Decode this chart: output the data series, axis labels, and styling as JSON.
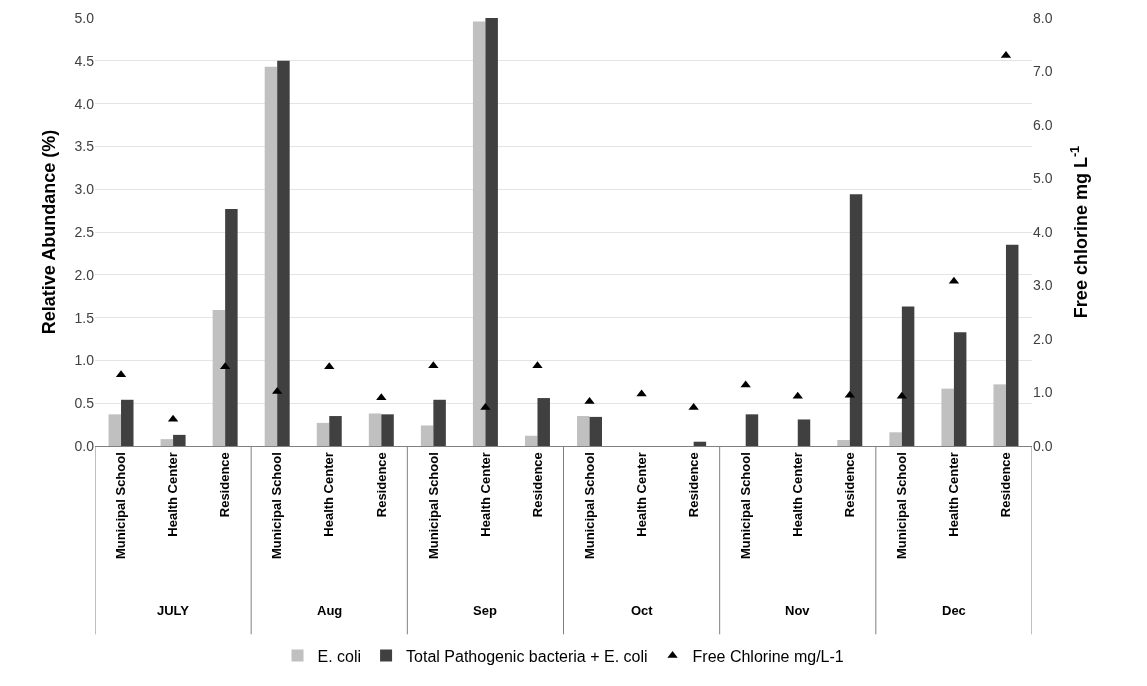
{
  "chart_data": {
    "type": "bar",
    "categories": [
      "Municipal School",
      "Health Center",
      "Residence",
      "Municipal School",
      "Health Center",
      "Residence",
      "Municipal School",
      "Health Center",
      "Residence",
      "Municipal School",
      "Health Center",
      "Residence",
      "Municipal School",
      "Health Center",
      "Residence",
      "Municipal School",
      "Health Center",
      "Residence"
    ],
    "annotations": [
      "JULY",
      "Aug",
      "Sep",
      "Oct",
      "Nov",
      "Dec"
    ],
    "series": [
      {
        "name": "E. coli",
        "color": "#c0c0c0",
        "values": [
          0.37,
          0.08,
          1.59,
          4.43,
          0.27,
          0.38,
          0.24,
          4.96,
          0.12,
          0.35,
          0,
          0,
          0,
          0,
          0.07,
          0.16,
          0.67,
          0.72
        ]
      },
      {
        "name": "Total Pathogenic bacteria + E. coli",
        "color": "#404040",
        "values": [
          0.54,
          0.13,
          2.77,
          4.5,
          0.35,
          0.37,
          0.54,
          5.0,
          0.56,
          0.34,
          0,
          0.05,
          0.37,
          0.31,
          2.94,
          1.63,
          1.33,
          2.35
        ]
      },
      {
        "name": "Free Chlorine mg/L-1",
        "type": "scatter",
        "axis": "y2",
        "color": "#000000",
        "values": [
          1.33,
          0.5,
          1.48,
          1.02,
          1.48,
          0.9,
          1.5,
          0.72,
          1.5,
          0.83,
          0.97,
          0.72,
          1.14,
          0.93,
          0.95,
          0.93,
          3.08,
          7.3
        ]
      }
    ],
    "marker": "triangle",
    "ylabel": "Relative Abundance (%)",
    "y2label": "Free chlorine mg L$^{-1}$",
    "ylim": [
      0,
      5
    ],
    "yticks": [
      {
        "value": 0,
        "label": "0.0"
      },
      {
        "value": 0.5,
        "label": "0.5"
      },
      {
        "value": 1,
        "label": "1.0"
      },
      {
        "value": 1.5,
        "label": "1.5"
      },
      {
        "value": 2,
        "label": "2.0"
      },
      {
        "value": 2.5,
        "label": "2.5"
      },
      {
        "value": 3,
        "label": "3.0"
      },
      {
        "value": 3.5,
        "label": "3.5"
      },
      {
        "value": 4,
        "label": "4.0"
      },
      {
        "value": 4.5,
        "label": "4.5"
      },
      {
        "value": 5,
        "label": "5.0"
      }
    ],
    "y2lim": [
      0,
      8
    ],
    "y2ticks": [
      {
        "value": 0,
        "label": "0.0"
      },
      {
        "value": 1,
        "label": "1.0"
      },
      {
        "value": 2,
        "label": "2.0"
      },
      {
        "value": 3,
        "label": "3.0"
      },
      {
        "value": 4,
        "label": "4.0"
      },
      {
        "value": 5,
        "label": "5.0"
      },
      {
        "value": 6,
        "label": "6.0"
      },
      {
        "value": 7,
        "label": "7.0"
      },
      {
        "value": 8,
        "label": "8.0"
      }
    ],
    "grid": "y",
    "legend": "bottom"
  }
}
